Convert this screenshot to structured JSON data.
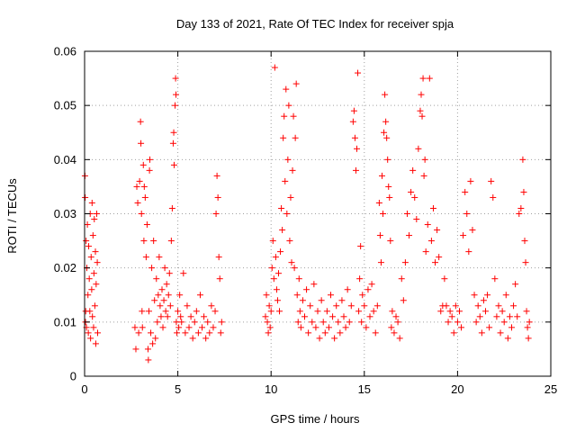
{
  "chart_data": {
    "type": "scatter",
    "title": "Day 133 of 2021, Rate Of TEC Index for receiver spja",
    "xlabel": "GPS time / hours",
    "ylabel": "ROTI / TECUs",
    "xlim": [
      0,
      25
    ],
    "ylim": [
      0,
      0.06
    ],
    "xticks": [
      0,
      5,
      10,
      15,
      20,
      25
    ],
    "xtick_labels": [
      "0",
      "5",
      "10",
      "15",
      "20",
      "25"
    ],
    "yticks": [
      0,
      0.01,
      0.02,
      0.03,
      0.04,
      0.05,
      0.06
    ],
    "ytick_labels": [
      "0",
      "0.01",
      "0.02",
      "0.03",
      "0.04",
      "0.05",
      "0.06"
    ],
    "grid": true,
    "marker": "plus",
    "color": "#ff0000",
    "series": [
      {
        "name": "ROTI",
        "points": [
          [
            0.02,
            0.037
          ],
          [
            0.03,
            0.033
          ],
          [
            0.05,
            0.01
          ],
          [
            0.06,
            0.012
          ],
          [
            0.08,
            0.025
          ],
          [
            0.1,
            0.009
          ],
          [
            0.12,
            0.02
          ],
          [
            0.15,
            0.028
          ],
          [
            0.18,
            0.015
          ],
          [
            0.2,
            0.008
          ],
          [
            0.22,
            0.024
          ],
          [
            0.25,
            0.018
          ],
          [
            0.28,
            0.012
          ],
          [
            0.3,
            0.03
          ],
          [
            0.32,
            0.007
          ],
          [
            0.35,
            0.022
          ],
          [
            0.38,
            0.016
          ],
          [
            0.4,
            0.032
          ],
          [
            0.42,
            0.011
          ],
          [
            0.45,
            0.026
          ],
          [
            0.48,
            0.009
          ],
          [
            0.5,
            0.019
          ],
          [
            0.52,
            0.029
          ],
          [
            0.55,
            0.013
          ],
          [
            0.58,
            0.023
          ],
          [
            0.6,
            0.006
          ],
          [
            0.62,
            0.017
          ],
          [
            0.65,
            0.03
          ],
          [
            0.68,
            0.021
          ],
          [
            0.7,
            0.008
          ],
          [
            2.7,
            0.009
          ],
          [
            2.75,
            0.005
          ],
          [
            2.8,
            0.035
          ],
          [
            2.85,
            0.032
          ],
          [
            2.9,
            0.008
          ],
          [
            2.95,
            0.036
          ],
          [
            3.0,
            0.047
          ],
          [
            3.02,
            0.043
          ],
          [
            3.05,
            0.03
          ],
          [
            3.08,
            0.012
          ],
          [
            3.1,
            0.009
          ],
          [
            3.15,
            0.039
          ],
          [
            3.18,
            0.025
          ],
          [
            3.2,
            0.035
          ],
          [
            3.25,
            0.033
          ],
          [
            3.3,
            0.022
          ],
          [
            3.35,
            0.028
          ],
          [
            3.4,
            0.005
          ],
          [
            3.42,
            0.003
          ],
          [
            3.45,
            0.012
          ],
          [
            3.48,
            0.038
          ],
          [
            3.5,
            0.04
          ],
          [
            3.55,
            0.008
          ],
          [
            3.6,
            0.02
          ],
          [
            3.65,
            0.006
          ],
          [
            3.7,
            0.025
          ],
          [
            3.75,
            0.014
          ],
          [
            3.8,
            0.007
          ],
          [
            3.85,
            0.018
          ],
          [
            3.9,
            0.01
          ],
          [
            3.95,
            0.015
          ],
          [
            4.0,
            0.022
          ],
          [
            4.05,
            0.013
          ],
          [
            4.1,
            0.011
          ],
          [
            4.15,
            0.016
          ],
          [
            4.2,
            0.009
          ],
          [
            4.25,
            0.014
          ],
          [
            4.3,
            0.02
          ],
          [
            4.35,
            0.012
          ],
          [
            4.4,
            0.017
          ],
          [
            4.45,
            0.011
          ],
          [
            4.5,
            0.015
          ],
          [
            4.55,
            0.019
          ],
          [
            4.6,
            0.013
          ],
          [
            4.65,
            0.025
          ],
          [
            4.7,
            0.031
          ],
          [
            4.75,
            0.043
          ],
          [
            4.78,
            0.045
          ],
          [
            4.8,
            0.039
          ],
          [
            4.85,
            0.05
          ],
          [
            4.88,
            0.055
          ],
          [
            4.9,
            0.052
          ],
          [
            4.92,
            0.01
          ],
          [
            4.95,
            0.008
          ],
          [
            5.0,
            0.012
          ],
          [
            5.05,
            0.009
          ],
          [
            5.1,
            0.015
          ],
          [
            5.15,
            0.011
          ],
          [
            5.2,
            0.01
          ],
          [
            5.3,
            0.019
          ],
          [
            5.4,
            0.008
          ],
          [
            5.5,
            0.013
          ],
          [
            5.6,
            0.009
          ],
          [
            5.7,
            0.011
          ],
          [
            5.8,
            0.007
          ],
          [
            5.9,
            0.01
          ],
          [
            6.0,
            0.012
          ],
          [
            6.1,
            0.008
          ],
          [
            6.2,
            0.015
          ],
          [
            6.3,
            0.009
          ],
          [
            6.4,
            0.011
          ],
          [
            6.5,
            0.007
          ],
          [
            6.6,
            0.01
          ],
          [
            6.7,
            0.008
          ],
          [
            6.8,
            0.013
          ],
          [
            6.9,
            0.009
          ],
          [
            7.0,
            0.012
          ],
          [
            7.05,
            0.03
          ],
          [
            7.1,
            0.037
          ],
          [
            7.15,
            0.033
          ],
          [
            7.2,
            0.022
          ],
          [
            7.25,
            0.018
          ],
          [
            7.3,
            0.008
          ],
          [
            7.35,
            0.01
          ],
          [
            9.7,
            0.011
          ],
          [
            9.75,
            0.015
          ],
          [
            9.8,
            0.01
          ],
          [
            9.85,
            0.008
          ],
          [
            9.9,
            0.013
          ],
          [
            9.95,
            0.009
          ],
          [
            10.0,
            0.012
          ],
          [
            10.05,
            0.02
          ],
          [
            10.1,
            0.025
          ],
          [
            10.15,
            0.018
          ],
          [
            10.2,
            0.057
          ],
          [
            10.25,
            0.022
          ],
          [
            10.3,
            0.016
          ],
          [
            10.35,
            0.014
          ],
          [
            10.4,
            0.019
          ],
          [
            10.45,
            0.012
          ],
          [
            10.5,
            0.023
          ],
          [
            10.55,
            0.031
          ],
          [
            10.6,
            0.027
          ],
          [
            10.65,
            0.044
          ],
          [
            10.7,
            0.048
          ],
          [
            10.75,
            0.036
          ],
          [
            10.8,
            0.053
          ],
          [
            10.85,
            0.03
          ],
          [
            10.9,
            0.04
          ],
          [
            10.95,
            0.05
          ],
          [
            11.0,
            0.025
          ],
          [
            11.05,
            0.033
          ],
          [
            11.1,
            0.021
          ],
          [
            11.15,
            0.038
          ],
          [
            11.2,
            0.048
          ],
          [
            11.25,
            0.02
          ],
          [
            11.3,
            0.044
          ],
          [
            11.35,
            0.054
          ],
          [
            11.4,
            0.015
          ],
          [
            11.45,
            0.01
          ],
          [
            11.5,
            0.018
          ],
          [
            11.55,
            0.012
          ],
          [
            11.6,
            0.009
          ],
          [
            11.7,
            0.014
          ],
          [
            11.8,
            0.011
          ],
          [
            11.9,
            0.016
          ],
          [
            12.0,
            0.008
          ],
          [
            12.1,
            0.013
          ],
          [
            12.2,
            0.01
          ],
          [
            12.3,
            0.017
          ],
          [
            12.4,
            0.009
          ],
          [
            12.5,
            0.012
          ],
          [
            12.6,
            0.007
          ],
          [
            12.7,
            0.014
          ],
          [
            12.8,
            0.01
          ],
          [
            12.9,
            0.008
          ],
          [
            13.0,
            0.012
          ],
          [
            13.1,
            0.009
          ],
          [
            13.2,
            0.015
          ],
          [
            13.3,
            0.011
          ],
          [
            13.4,
            0.007
          ],
          [
            13.5,
            0.013
          ],
          [
            13.6,
            0.01
          ],
          [
            13.7,
            0.008
          ],
          [
            13.8,
            0.014
          ],
          [
            13.9,
            0.011
          ],
          [
            14.0,
            0.009
          ],
          [
            14.1,
            0.016
          ],
          [
            14.2,
            0.01
          ],
          [
            14.3,
            0.013
          ],
          [
            14.4,
            0.047
          ],
          [
            14.45,
            0.049
          ],
          [
            14.5,
            0.044
          ],
          [
            14.55,
            0.038
          ],
          [
            14.6,
            0.042
          ],
          [
            14.65,
            0.056
          ],
          [
            14.7,
            0.012
          ],
          [
            14.75,
            0.018
          ],
          [
            14.8,
            0.024
          ],
          [
            14.85,
            0.01
          ],
          [
            14.9,
            0.015
          ],
          [
            15.0,
            0.013
          ],
          [
            15.1,
            0.009
          ],
          [
            15.2,
            0.016
          ],
          [
            15.3,
            0.011
          ],
          [
            15.4,
            0.017
          ],
          [
            15.5,
            0.012
          ],
          [
            15.6,
            0.008
          ],
          [
            15.7,
            0.013
          ],
          [
            15.8,
            0.032
          ],
          [
            15.85,
            0.026
          ],
          [
            15.9,
            0.021
          ],
          [
            15.95,
            0.037
          ],
          [
            16.0,
            0.03
          ],
          [
            16.05,
            0.045
          ],
          [
            16.1,
            0.052
          ],
          [
            16.15,
            0.047
          ],
          [
            16.2,
            0.044
          ],
          [
            16.25,
            0.04
          ],
          [
            16.3,
            0.035
          ],
          [
            16.35,
            0.033
          ],
          [
            16.4,
            0.025
          ],
          [
            16.45,
            0.009
          ],
          [
            16.5,
            0.012
          ],
          [
            16.6,
            0.008
          ],
          [
            16.7,
            0.011
          ],
          [
            16.8,
            0.01
          ],
          [
            16.9,
            0.007
          ],
          [
            17.0,
            0.018
          ],
          [
            17.1,
            0.014
          ],
          [
            17.2,
            0.021
          ],
          [
            17.3,
            0.03
          ],
          [
            17.4,
            0.026
          ],
          [
            17.5,
            0.034
          ],
          [
            17.6,
            0.038
          ],
          [
            17.7,
            0.033
          ],
          [
            17.8,
            0.029
          ],
          [
            17.9,
            0.042
          ],
          [
            18.0,
            0.049
          ],
          [
            18.05,
            0.052
          ],
          [
            18.1,
            0.048
          ],
          [
            18.15,
            0.055
          ],
          [
            18.2,
            0.037
          ],
          [
            18.25,
            0.04
          ],
          [
            18.3,
            0.023
          ],
          [
            18.4,
            0.028
          ],
          [
            18.5,
            0.055
          ],
          [
            18.6,
            0.025
          ],
          [
            18.7,
            0.031
          ],
          [
            18.8,
            0.021
          ],
          [
            18.9,
            0.027
          ],
          [
            19.0,
            0.022
          ],
          [
            19.1,
            0.012
          ],
          [
            19.2,
            0.013
          ],
          [
            19.3,
            0.018
          ],
          [
            19.4,
            0.013
          ],
          [
            19.5,
            0.01
          ],
          [
            19.6,
            0.012
          ],
          [
            19.7,
            0.011
          ],
          [
            19.8,
            0.008
          ],
          [
            19.9,
            0.013
          ],
          [
            20.0,
            0.01
          ],
          [
            20.1,
            0.012
          ],
          [
            20.2,
            0.009
          ],
          [
            20.3,
            0.026
          ],
          [
            20.4,
            0.034
          ],
          [
            20.5,
            0.03
          ],
          [
            20.6,
            0.023
          ],
          [
            20.7,
            0.036
          ],
          [
            20.8,
            0.027
          ],
          [
            20.9,
            0.015
          ],
          [
            21.0,
            0.01
          ],
          [
            21.1,
            0.013
          ],
          [
            21.2,
            0.011
          ],
          [
            21.3,
            0.008
          ],
          [
            21.4,
            0.014
          ],
          [
            21.5,
            0.012
          ],
          [
            21.6,
            0.015
          ],
          [
            21.7,
            0.009
          ],
          [
            21.8,
            0.036
          ],
          [
            21.9,
            0.033
          ],
          [
            22.0,
            0.018
          ],
          [
            22.1,
            0.011
          ],
          [
            22.2,
            0.013
          ],
          [
            22.3,
            0.008
          ],
          [
            22.4,
            0.012
          ],
          [
            22.5,
            0.01
          ],
          [
            22.6,
            0.015
          ],
          [
            22.7,
            0.007
          ],
          [
            22.8,
            0.011
          ],
          [
            22.9,
            0.009
          ],
          [
            23.0,
            0.013
          ],
          [
            23.1,
            0.017
          ],
          [
            23.2,
            0.011
          ],
          [
            23.3,
            0.03
          ],
          [
            23.4,
            0.031
          ],
          [
            23.5,
            0.04
          ],
          [
            23.55,
            0.034
          ],
          [
            23.6,
            0.025
          ],
          [
            23.65,
            0.021
          ],
          [
            23.7,
            0.012
          ],
          [
            23.75,
            0.009
          ],
          [
            23.8,
            0.007
          ],
          [
            23.85,
            0.01
          ]
        ]
      }
    ]
  }
}
